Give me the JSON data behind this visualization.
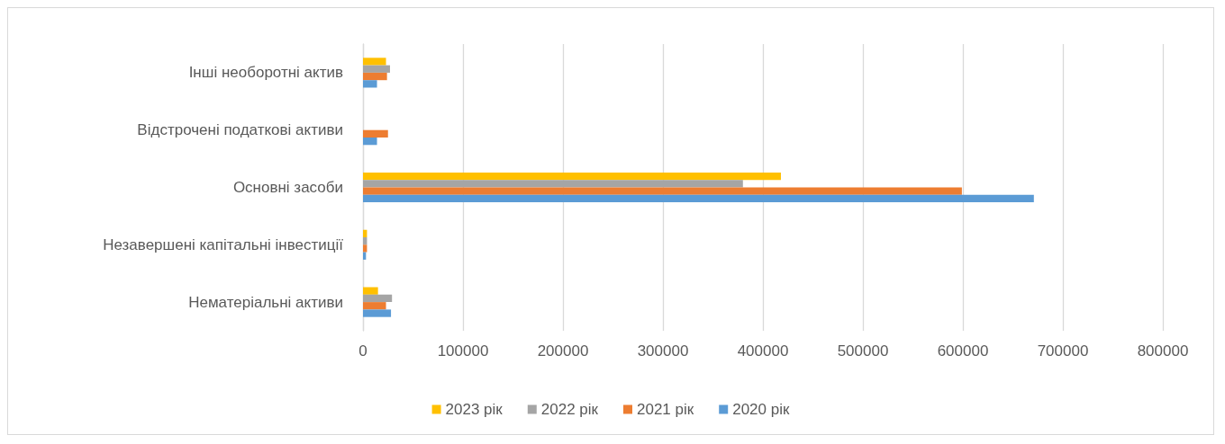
{
  "chart_data": {
    "type": "bar",
    "orientation": "horizontal",
    "categories": [
      "Інші необоротні актив",
      "Відстрочені податкові активи",
      "Основні засоби",
      "Незавершені капітальні інвестиції",
      "Нематеріальні активи"
    ],
    "series": [
      {
        "name": "2023 рік",
        "color": "#ffc000",
        "values": [
          23000,
          null,
          418000,
          4000,
          15000
        ]
      },
      {
        "name": "2022 рік",
        "color": "#a5a5a5",
        "values": [
          27000,
          null,
          380000,
          4000,
          29000
        ]
      },
      {
        "name": "2021 рік",
        "color": "#ed7d31",
        "values": [
          24000,
          25000,
          599000,
          4000,
          23000
        ]
      },
      {
        "name": "2020 рік",
        "color": "#5b9bd5",
        "values": [
          14000,
          14000,
          671000,
          3000,
          28000
        ]
      }
    ],
    "xlim": [
      0,
      800000
    ],
    "xticks": [
      0,
      100000,
      200000,
      300000,
      400000,
      500000,
      600000,
      700000,
      800000
    ],
    "grid": "x",
    "legend": "bottom"
  }
}
